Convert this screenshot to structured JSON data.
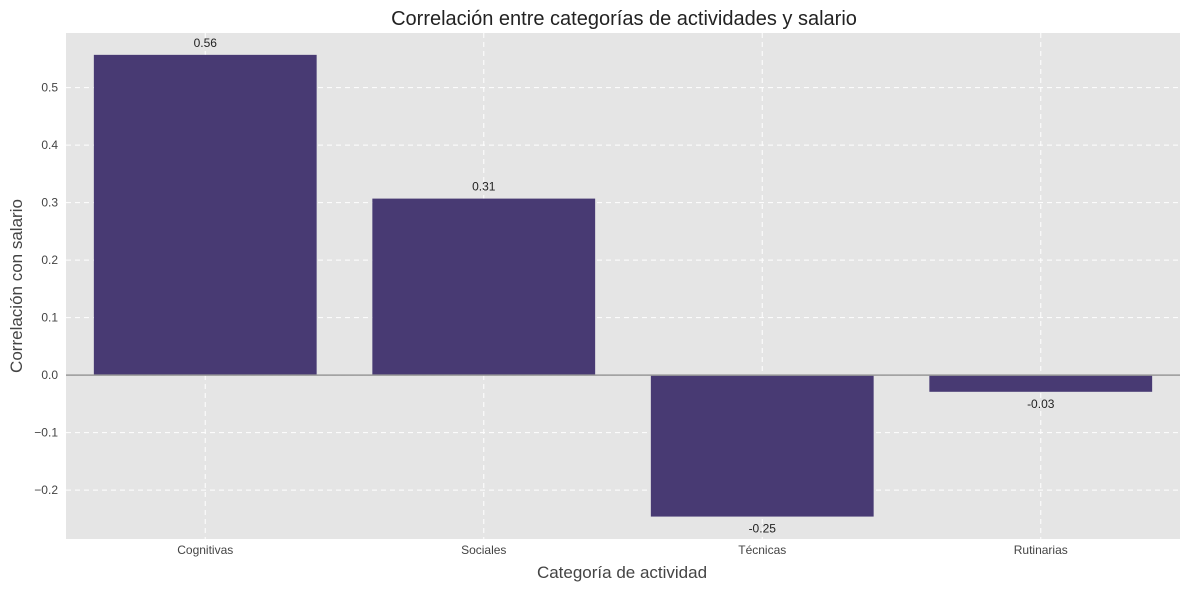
{
  "chart_data": {
    "type": "bar",
    "title": "Correlación entre categorías de actividades y salario",
    "xlabel": "Categoría de actividad",
    "ylabel": "Correlación con salario",
    "categories": [
      "Cognitivas",
      "Sociales",
      "Técnicas",
      "Rutinarias"
    ],
    "values": [
      0.557,
      0.307,
      -0.246,
      -0.029
    ],
    "data_labels": [
      "0.56",
      "0.31",
      "-0.25",
      "-0.03"
    ],
    "ylim": [
      -0.285,
      0.595
    ],
    "yticks": [
      -0.2,
      -0.1,
      0.0,
      0.1,
      0.2,
      0.3,
      0.4,
      0.5
    ],
    "ytick_labels": [
      "−0.2",
      "−0.1",
      "0.0",
      "0.1",
      "0.2",
      "0.3",
      "0.4",
      "0.5"
    ],
    "grid": true,
    "zero_line": true,
    "colors": {
      "bar": "#483a73",
      "plot_background": "#e5e5e5",
      "grid": "#ffffff",
      "zero_line": "#999999"
    }
  }
}
